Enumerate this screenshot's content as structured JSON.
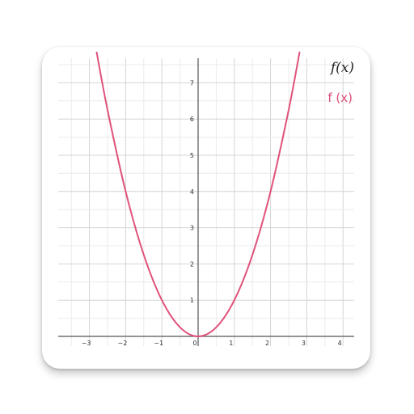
{
  "app": {
    "accent_color": "#e0527a"
  },
  "legend": {
    "expression_label": "f(x)",
    "series_label": "f (x)"
  },
  "chart_data": {
    "type": "line",
    "title": "",
    "xlabel": "",
    "ylabel": "",
    "xlim": [
      -3.6,
      4.3
    ],
    "ylim": [
      0,
      7.8
    ],
    "grid": true,
    "x_ticks": [
      -3,
      -2,
      -1,
      0,
      1,
      2,
      3,
      4
    ],
    "x_tick_labels": [
      "−3",
      "−2",
      "−1",
      "0",
      "1",
      "2",
      "3",
      "4"
    ],
    "y_ticks": [
      1,
      2,
      3,
      4,
      5,
      6,
      7
    ],
    "y_tick_labels": [
      "1",
      "2",
      "3",
      "4",
      "5",
      "6",
      "7"
    ],
    "legend_position": "top-right",
    "series": [
      {
        "name": "f (x)",
        "color": "#e0527a",
        "x": [
          -2.8,
          -2.5,
          -2,
          -1.5,
          -1,
          -0.5,
          0,
          0.5,
          1,
          1.5,
          2,
          2.5,
          2.8
        ],
        "y": [
          7.84,
          6.25,
          4,
          2.25,
          1,
          0.25,
          0,
          0.25,
          1,
          2.25,
          4,
          6.25,
          7.84
        ]
      }
    ]
  }
}
